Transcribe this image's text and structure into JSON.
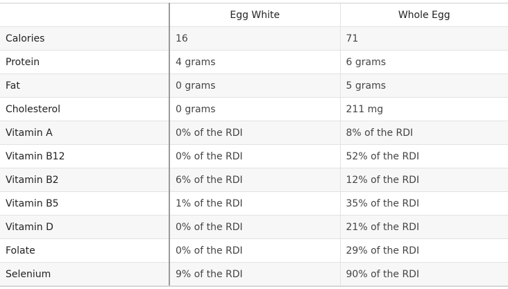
{
  "table": {
    "columns": [
      "Egg White",
      "Whole Egg"
    ],
    "rows": [
      [
        "Calories",
        "16",
        "71"
      ],
      [
        "Protein",
        "4 grams",
        "6 grams"
      ],
      [
        "Fat",
        "0 grams",
        "5 grams"
      ],
      [
        "Cholesterol",
        "0 grams",
        "211 mg"
      ],
      [
        "Vitamin A",
        "0% of the RDI",
        "8% of the RDI"
      ],
      [
        "Vitamin B12",
        "0% of the RDI",
        "52% of the RDI"
      ],
      [
        "Vitamin B2",
        "6% of the RDI",
        "12% of the RDI"
      ],
      [
        "Vitamin B5",
        "1% of the RDI",
        "35% of the RDI"
      ],
      [
        "Vitamin D",
        "0% of the RDI",
        "21% of the RDI"
      ],
      [
        "Folate",
        "0% of the RDI",
        "29% of the RDI"
      ],
      [
        "Selenium",
        "9% of the RDI",
        "90% of the RDI"
      ]
    ]
  }
}
